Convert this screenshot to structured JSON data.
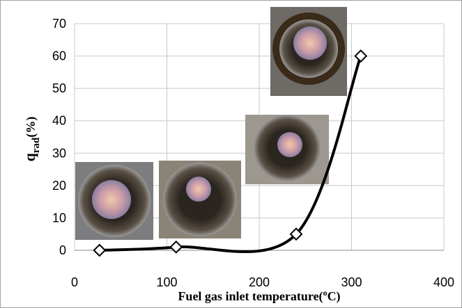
{
  "chart_data": {
    "type": "line",
    "xlabel": [
      "Fuel gas inlet temperature(",
      "o",
      "C)"
    ],
    "ylabel": [
      "q",
      "rad",
      "(%)"
    ],
    "x": [
      27,
      110,
      240,
      310
    ],
    "series": [
      {
        "color": "#000000",
        "values": [
          0,
          1,
          5,
          60
        ]
      }
    ],
    "xlim": [
      0,
      400
    ],
    "xticks": [
      0,
      100,
      200,
      300,
      400
    ],
    "ylim": [
      0,
      70
    ],
    "yticks": [
      0,
      10,
      20,
      30,
      40,
      50,
      60,
      70
    ],
    "grid": true,
    "smooth": true,
    "marker": "diamond"
  }
}
